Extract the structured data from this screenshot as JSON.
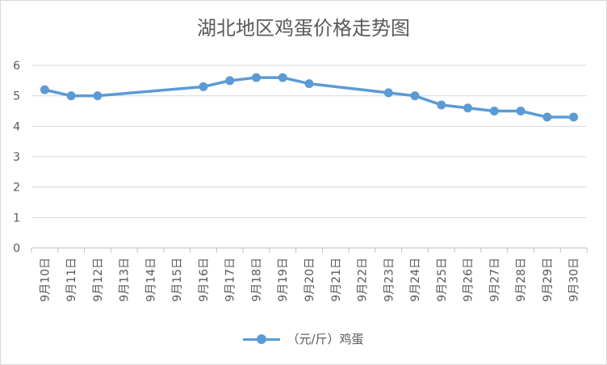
{
  "chart_data": {
    "type": "line",
    "title": "湖北地区鸡蛋价格走势图",
    "categories": [
      "9月10日",
      "9月11日",
      "9月12日",
      "9月13日",
      "9月14日",
      "9月15日",
      "9月16日",
      "9月17日",
      "9月18日",
      "9月19日",
      "9月20日",
      "9月21日",
      "9月22日",
      "9月23日",
      "9月24日",
      "9月25日",
      "9月26日",
      "9月27日",
      "9月28日",
      "9月29日",
      "9月30日"
    ],
    "series": [
      {
        "name": "（元/斤）鸡蛋",
        "color": "#5b9bd5",
        "values": [
          5.2,
          5.0,
          5.0,
          null,
          null,
          null,
          5.3,
          5.5,
          5.6,
          5.6,
          5.4,
          null,
          null,
          5.1,
          5.0,
          4.7,
          4.6,
          4.5,
          4.5,
          4.3,
          4.3
        ]
      }
    ],
    "ylim": [
      0,
      6
    ],
    "yticks": [
      0,
      1,
      2,
      3,
      4,
      5,
      6
    ],
    "grid": true,
    "legend": "bottom"
  }
}
